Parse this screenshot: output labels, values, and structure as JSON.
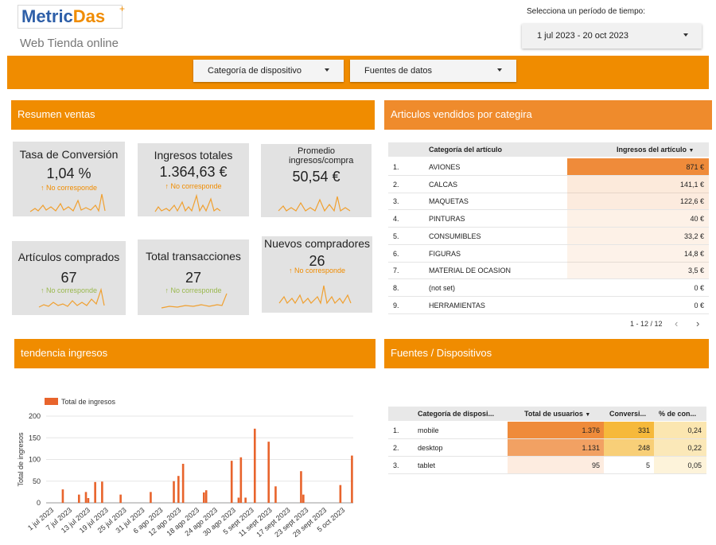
{
  "header": {
    "logo_part1": "Metric",
    "logo_part2": "Das",
    "logo_plus": "+",
    "subtitle": "Web Tienda online",
    "period_label": "Selecciona un período de tiempo:",
    "period_value": "1 jul 2023 - 20 oct 2023"
  },
  "filters": {
    "device_category": "Categoría de dispositivo",
    "data_sources": "Fuentes de datos"
  },
  "sections": {
    "sales_summary": "Resumen ventas",
    "items_by_category": "Articulos vendidos por categira",
    "revenue_trend": "tendencia ingresos",
    "sources_devices": "Fuentes / Dispositivos"
  },
  "kpis": [
    {
      "label": "Tasa de Conversión",
      "value": "1,04 %",
      "note": "No corresponde"
    },
    {
      "label": "Ingresos totales",
      "value": "1.364,63 €",
      "note": "No corresponde"
    },
    {
      "label": "Promedio ingresos/compra",
      "value": "50,54 €",
      "note": ""
    },
    {
      "label": "Artículos comprados",
      "value": "67",
      "note": "No corresponde"
    },
    {
      "label": "Total transacciones",
      "value": "27",
      "note": "No corresponde"
    },
    {
      "label": "Nuevos compradores",
      "value": "26",
      "note": "No corresponde"
    }
  ],
  "category_table": {
    "col_category": "Categoría del artículo",
    "col_revenue": "Ingresos del artículo",
    "rows": [
      {
        "n": "1.",
        "category": "AVIONES",
        "revenue": "871 €",
        "value": 871
      },
      {
        "n": "2.",
        "category": "CALCAS",
        "revenue": "141,1 €",
        "value": 141.1
      },
      {
        "n": "3.",
        "category": "MAQUETAS",
        "revenue": "122,6 €",
        "value": 122.6
      },
      {
        "n": "4.",
        "category": "PINTURAS",
        "revenue": "40 €",
        "value": 40
      },
      {
        "n": "5.",
        "category": "CONSUMIBLES",
        "revenue": "33,2 €",
        "value": 33.2
      },
      {
        "n": "6.",
        "category": "FIGURAS",
        "revenue": "14,8 €",
        "value": 14.8
      },
      {
        "n": "7.",
        "category": "MATERIAL DE OCASION",
        "revenue": "3,5 €",
        "value": 3.5
      },
      {
        "n": "8.",
        "category": "(not set)",
        "revenue": "0 €",
        "value": 0
      },
      {
        "n": "9.",
        "category": "HERRAMIENTAS",
        "revenue": "0 €",
        "value": 0
      }
    ],
    "pager": "1 - 12 / 12"
  },
  "device_table": {
    "col_device": "Categoría de disposi...",
    "col_users": "Total de usuarios",
    "col_conv": "Conversi...",
    "col_pct": "% de con...",
    "rows": [
      {
        "n": "1.",
        "device": "mobile",
        "users": "1.376",
        "conv": "331",
        "pct": "0,24"
      },
      {
        "n": "2.",
        "device": "desktop",
        "users": "1.131",
        "conv": "248",
        "pct": "0,22"
      },
      {
        "n": "3.",
        "device": "tablet",
        "users": "95",
        "conv": "5",
        "pct": "0,05"
      }
    ]
  },
  "colors": {
    "brand_orange": "#f08c00",
    "bar_orange": "#e8642c",
    "logo_blue": "#2e5fa8"
  },
  "chart_data": {
    "type": "bar",
    "legend": "Total de ingresos",
    "ylabel": "Total de ingresos",
    "ylim": [
      0,
      200
    ],
    "yticks": [
      0,
      50,
      100,
      150,
      200
    ],
    "xtick_labels": [
      "1 jul 2023",
      "7 jul 2023",
      "13 jul 2023",
      "19 jul 2023",
      "25 jul 2023",
      "31 jul 2023",
      "6 ago 2023",
      "12 ago 2023",
      "18 ago 2023",
      "24 ago 2023",
      "30 ago 2023",
      "5 sept 2023",
      "11 sept 2023",
      "17 sept 2023",
      "23 sept 2023",
      "29 sept 2023",
      "5 oct 2023"
    ],
    "values": [
      0,
      0,
      0,
      0,
      31,
      0,
      0,
      0,
      0,
      0,
      0,
      19,
      0,
      0,
      25,
      11,
      0,
      0,
      48,
      0,
      0,
      49,
      0,
      0,
      0,
      0,
      0,
      0,
      0,
      19,
      0,
      0,
      0,
      0,
      0,
      0,
      0,
      0,
      0,
      0,
      0,
      0,
      25,
      0,
      0,
      0,
      0,
      0,
      0,
      0,
      0,
      0,
      50,
      0,
      62,
      0,
      90,
      0,
      0,
      0,
      0,
      0,
      0,
      0,
      0,
      24,
      29,
      0,
      0,
      0,
      0,
      0,
      0,
      0,
      0,
      0,
      0,
      97,
      0,
      0,
      12,
      105,
      0,
      12,
      0,
      0,
      0,
      171,
      0,
      0,
      0,
      0,
      0,
      141,
      0,
      0,
      38,
      0,
      0,
      0,
      0,
      0,
      0,
      0,
      0,
      0,
      0,
      73,
      19,
      0,
      0,
      0,
      0,
      0,
      0,
      0,
      0,
      0,
      0,
      0,
      0,
      0,
      0,
      0,
      41,
      0,
      0,
      0,
      0,
      109
    ]
  }
}
